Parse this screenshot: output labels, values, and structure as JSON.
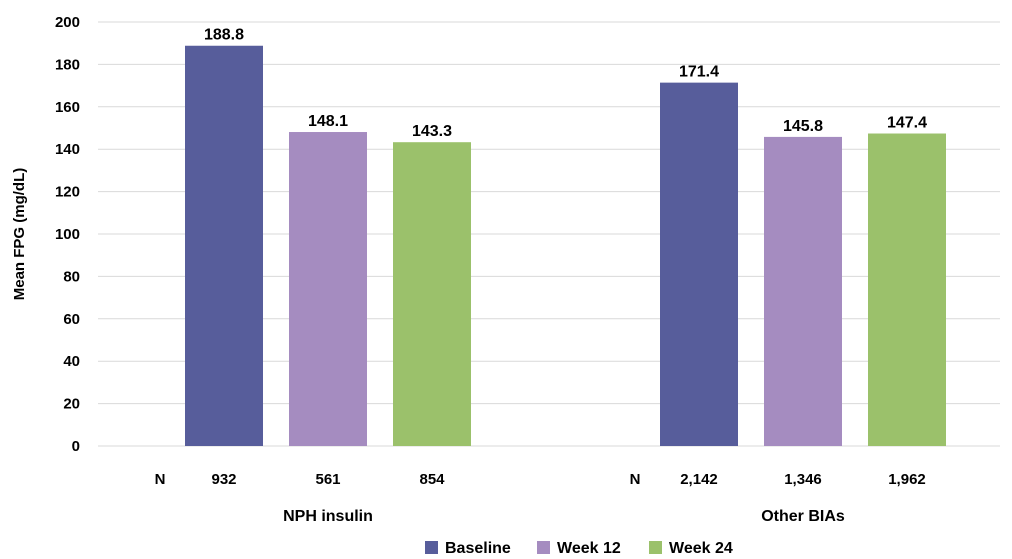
{
  "chart_data": {
    "type": "bar",
    "categories": [
      "NPH insulin",
      "Other BIAs"
    ],
    "series": [
      {
        "name": "Baseline",
        "values": [
          188.8,
          171.4
        ],
        "n": [
          "932",
          "2,142"
        ]
      },
      {
        "name": "Week 12",
        "values": [
          148.1,
          145.8
        ],
        "n": [
          "561",
          "1,346"
        ]
      },
      {
        "name": "Week 24",
        "values": [
          143.3,
          147.4
        ],
        "n": [
          "854",
          "1,962"
        ]
      }
    ],
    "value_labels": [
      [
        "188.8",
        "171.4"
      ],
      [
        "148.1",
        "145.8"
      ],
      [
        "143.3",
        "147.4"
      ]
    ],
    "n_label": "N",
    "ylabel": "Mean FPG (mg/dL)",
    "xlabel": "",
    "ylim": [
      0,
      200
    ],
    "yticks": [
      0,
      20,
      40,
      60,
      80,
      100,
      120,
      140,
      160,
      180,
      200
    ],
    "grid": true,
    "legend": "bottom-center",
    "colors": [
      "#575d9b",
      "#a58cc0",
      "#9bc16b"
    ],
    "gridline_color": "#d9d9d9"
  }
}
